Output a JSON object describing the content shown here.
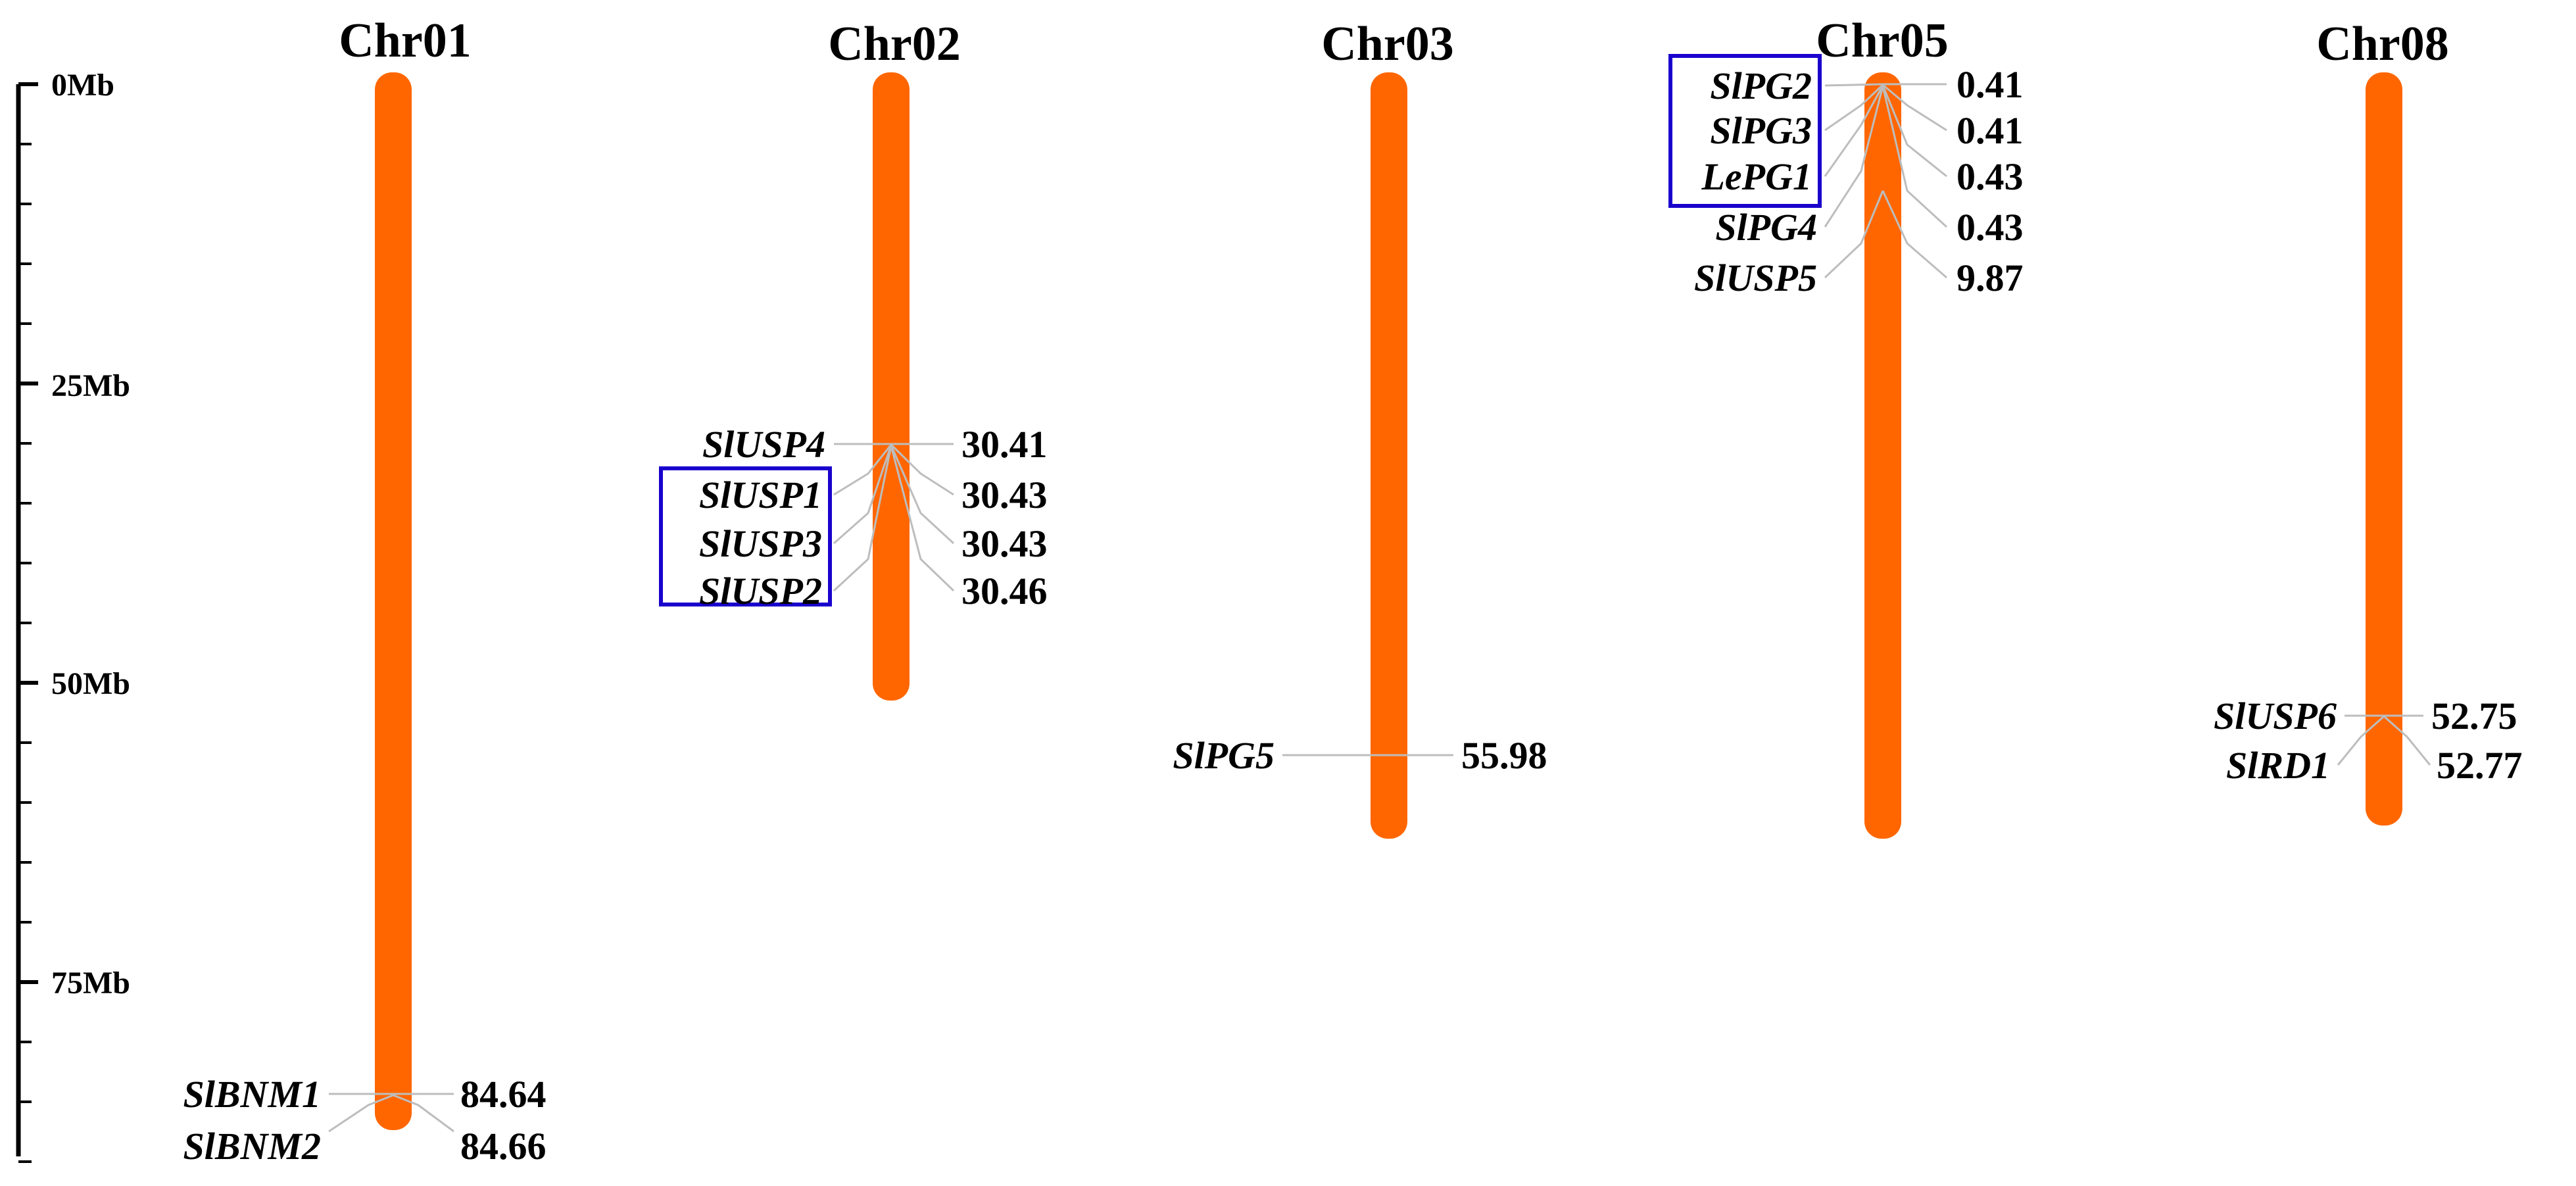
{
  "axis": {
    "unit": "Mb",
    "max_mb": 90,
    "labels": [
      "0Mb",
      "25Mb",
      "50Mb",
      "75Mb"
    ]
  },
  "colors": {
    "chromosome": "#ff6600",
    "highlight_box": "#1a00cc",
    "leader": "#bdbdbd"
  },
  "chromosomes": [
    {
      "name": "Chr01",
      "length_mb": 88,
      "genes": [
        {
          "name": "SlBNM1",
          "pos": "84.64"
        },
        {
          "name": "SlBNM2",
          "pos": "84.66"
        }
      ]
    },
    {
      "name": "Chr02",
      "length_mb": 51,
      "genes": [
        {
          "name": "SlUSP4",
          "pos": "30.41"
        },
        {
          "name": "SlUSP1",
          "pos": "30.43"
        },
        {
          "name": "SlUSP3",
          "pos": "30.43"
        },
        {
          "name": "SlUSP2",
          "pos": "30.46"
        }
      ]
    },
    {
      "name": "Chr03",
      "length_mb": 63,
      "genes": [
        {
          "name": "SlPG5",
          "pos": "55.98"
        }
      ]
    },
    {
      "name": "Chr05",
      "length_mb": 63,
      "genes": [
        {
          "name": "SlPG2",
          "pos": "0.41"
        },
        {
          "name": "SlPG3",
          "pos": "0.41"
        },
        {
          "name": "LePG1",
          "pos": "0.43"
        },
        {
          "name": "SlPG4",
          "pos": "0.43"
        },
        {
          "name": "SlUSP5",
          "pos": "9.87"
        }
      ]
    },
    {
      "name": "Chr08",
      "length_mb": 62,
      "genes": [
        {
          "name": "SlUSP6",
          "pos": "52.75"
        },
        {
          "name": "SlRD1",
          "pos": "52.77"
        }
      ]
    }
  ],
  "highlight_groups": [
    {
      "chromosome": "Chr02",
      "genes": [
        "SlUSP1",
        "SlUSP3",
        "SlUSP2"
      ]
    },
    {
      "chromosome": "Chr05",
      "genes": [
        "SlPG2",
        "SlPG3",
        "LePG1"
      ]
    }
  ]
}
